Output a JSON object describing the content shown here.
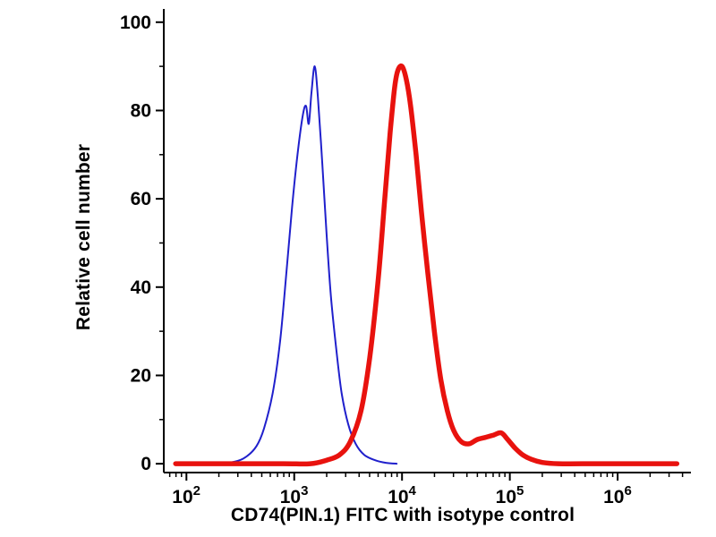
{
  "chart_data": {
    "type": "line",
    "subtype": "flow-cytometry-histogram",
    "title": "",
    "xlabel": "CD74(PIN.1) FITC with isotype control",
    "ylabel": "Relative cell number",
    "x_scale": "log10",
    "xlim_log10": [
      1.79,
      6.68
    ],
    "ylim": [
      -2,
      103
    ],
    "grid": false,
    "legend": "none",
    "axis_color": "#000000",
    "x_ticks": [
      {
        "log10": 2,
        "base": "10",
        "exp": "2"
      },
      {
        "log10": 3,
        "base": "10",
        "exp": "3"
      },
      {
        "log10": 4,
        "base": "10",
        "exp": "4"
      },
      {
        "log10": 5,
        "base": "10",
        "exp": "5"
      },
      {
        "log10": 6,
        "base": "10",
        "exp": "6"
      }
    ],
    "y_ticks": [
      0,
      20,
      40,
      60,
      80,
      100
    ],
    "series": [
      {
        "name": "isotype control (blue)",
        "color": "#2020cc",
        "line_width": 2,
        "x_log10": [
          1.9,
          2.1,
          2.3,
          2.45,
          2.55,
          2.65,
          2.72,
          2.8,
          2.87,
          2.93,
          2.98,
          3.03,
          3.08,
          3.11,
          3.135,
          3.16,
          3.19,
          3.22,
          3.26,
          3.3,
          3.34,
          3.39,
          3.44,
          3.5,
          3.57,
          3.65,
          3.75,
          3.85,
          3.95
        ],
        "values": [
          0,
          0,
          0,
          0.5,
          1.5,
          4,
          8,
          16,
          28,
          44,
          58,
          70,
          79,
          81,
          77,
          84,
          90,
          83,
          68,
          52,
          38,
          26,
          16,
          9,
          4.5,
          2,
          0.8,
          0.2,
          0
        ]
      },
      {
        "name": "CD74(PIN.1) FITC (red)",
        "color": "#e8120e",
        "line_width": 5.5,
        "x_log10": [
          1.9,
          2.4,
          2.9,
          3.15,
          3.3,
          3.42,
          3.52,
          3.62,
          3.7,
          3.78,
          3.84,
          3.89,
          3.93,
          3.96,
          4.0,
          4.04,
          4.08,
          4.13,
          4.18,
          4.24,
          4.3,
          4.36,
          4.42,
          4.48,
          4.55,
          4.62,
          4.7,
          4.78,
          4.85,
          4.92,
          4.98,
          5.05,
          5.12,
          5.2,
          5.3,
          5.45,
          5.8,
          6.2,
          6.55
        ],
        "values": [
          0,
          0,
          0,
          0,
          0.8,
          2,
          5,
          12,
          24,
          42,
          60,
          75,
          85,
          89,
          90,
          87,
          81,
          70,
          57,
          43,
          30,
          19,
          12,
          7.5,
          5,
          4.5,
          5.5,
          6,
          6.5,
          7,
          5.5,
          3.5,
          2,
          1,
          0.3,
          0,
          0,
          0,
          0
        ]
      }
    ]
  }
}
